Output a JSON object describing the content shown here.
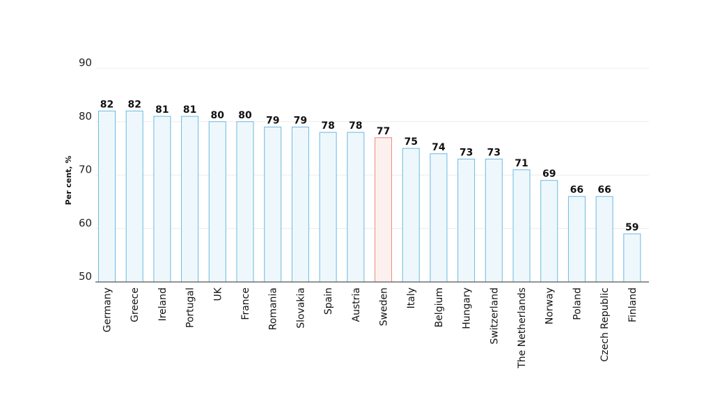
{
  "chart_data": {
    "type": "bar",
    "title": "",
    "xlabel": "",
    "ylabel": "Per cent, %",
    "ylim": [
      50,
      90
    ],
    "yticks": [
      "50",
      "60",
      "70",
      "80",
      "90"
    ],
    "grid": true,
    "categories": [
      "Germany",
      "Greece",
      "Ireland",
      "Portugal",
      "UK",
      "France",
      "Romania",
      "Slovakia",
      "Spain",
      "Austria",
      "Sweden",
      "Italy",
      "Belgium",
      "Hungary",
      "Switzerland",
      "The Netherlands",
      "Norway",
      "Poland",
      "Czech Republic",
      "Finland"
    ],
    "values": [
      82,
      82,
      81,
      81,
      80,
      80,
      79,
      79,
      78,
      78,
      77,
      75,
      74,
      73,
      73,
      71,
      69,
      66,
      66,
      59
    ],
    "highlight_category": "Sweden",
    "colors": {
      "bar_fill": "#eef8fc",
      "bar_stroke": "#6cb8e0",
      "highlight_fill": "#fdf1ef",
      "highlight_stroke": "#ee8b78",
      "grid": "#ececec",
      "axis": "#555555"
    }
  }
}
